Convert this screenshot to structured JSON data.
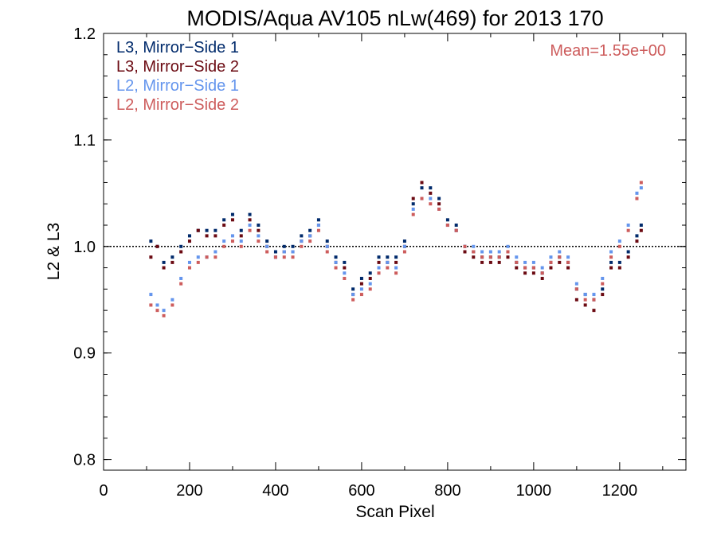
{
  "chart_data": {
    "type": "scatter",
    "title": "MODIS/Aqua AV105 nLw(469) for 2013 170",
    "xlabel": "Scan Pixel",
    "ylabel": "L2 & L3",
    "xlim": [
      0,
      1354
    ],
    "ylim": [
      0.79,
      1.2
    ],
    "xticks": [
      "0",
      "200",
      "400",
      "600",
      "800",
      "1000",
      "1200"
    ],
    "yticks": [
      "0.8",
      "0.9",
      "1.0",
      "1.1",
      "1.2"
    ],
    "reference_line": 1.0,
    "annotation": "Mean=1.55e+00",
    "annotation_color": "#cd5c5c",
    "legend_position": "top-left",
    "series": [
      {
        "name": "L3, Mirror−Side 1",
        "color": "#002a6b",
        "x": [
          110,
          125,
          140,
          160,
          180,
          200,
          220,
          240,
          260,
          280,
          300,
          320,
          340,
          360,
          380,
          400,
          420,
          440,
          460,
          480,
          500,
          520,
          540,
          560,
          580,
          600,
          620,
          640,
          660,
          680,
          700,
          720,
          740,
          760,
          780,
          800,
          820,
          840,
          860,
          880,
          900,
          920,
          940,
          960,
          980,
          1000,
          1020,
          1040,
          1060,
          1080,
          1100,
          1120,
          1140,
          1160,
          1180,
          1200,
          1220,
          1240,
          1250
        ],
        "y": [
          1.005,
          1.0,
          0.985,
          0.99,
          1.0,
          1.01,
          1.015,
          1.015,
          1.015,
          1.025,
          1.03,
          1.015,
          1.03,
          1.02,
          1.005,
          0.995,
          1.0,
          1.0,
          1.01,
          1.015,
          1.025,
          1.005,
          0.99,
          0.985,
          0.96,
          0.97,
          0.975,
          0.99,
          0.99,
          0.99,
          1.005,
          1.04,
          1.055,
          1.055,
          1.045,
          1.025,
          1.02,
          1.0,
          0.995,
          0.99,
          0.99,
          0.99,
          0.995,
          0.985,
          0.98,
          0.98,
          0.975,
          0.985,
          0.99,
          0.985,
          0.96,
          0.955,
          0.95,
          0.96,
          0.985,
          0.985,
          0.995,
          1.01,
          1.02
        ]
      },
      {
        "name": "L3, Mirror−Side 2",
        "color": "#6b0a12",
        "x": [
          110,
          125,
          140,
          160,
          180,
          200,
          220,
          240,
          260,
          280,
          300,
          320,
          340,
          360,
          380,
          400,
          420,
          440,
          460,
          480,
          500,
          520,
          540,
          560,
          580,
          600,
          620,
          640,
          660,
          680,
          700,
          720,
          740,
          760,
          780,
          800,
          820,
          840,
          860,
          880,
          900,
          920,
          940,
          960,
          980,
          1000,
          1020,
          1040,
          1060,
          1080,
          1100,
          1120,
          1140,
          1160,
          1180,
          1200,
          1220,
          1240,
          1250
        ],
        "y": [
          0.99,
          1.0,
          0.98,
          0.985,
          0.995,
          1.005,
          1.015,
          1.01,
          1.01,
          1.02,
          1.025,
          1.01,
          1.025,
          1.015,
          1.0,
          0.99,
          0.995,
          0.995,
          1.005,
          1.01,
          1.02,
          1.0,
          0.985,
          0.98,
          0.955,
          0.965,
          0.97,
          0.985,
          0.985,
          0.985,
          1.0,
          1.045,
          1.06,
          1.05,
          1.04,
          1.02,
          1.015,
          0.995,
          0.99,
          0.985,
          0.985,
          0.985,
          0.99,
          0.98,
          0.975,
          0.975,
          0.97,
          0.98,
          0.985,
          0.98,
          0.95,
          0.945,
          0.94,
          0.955,
          0.98,
          0.98,
          0.99,
          1.005,
          1.015
        ]
      },
      {
        "name": "L2, Mirror−Side 1",
        "color": "#6495ed",
        "x": [
          110,
          125,
          140,
          160,
          180,
          200,
          220,
          240,
          260,
          280,
          300,
          320,
          340,
          360,
          380,
          400,
          420,
          440,
          460,
          480,
          500,
          520,
          540,
          560,
          580,
          600,
          620,
          640,
          660,
          680,
          700,
          720,
          740,
          760,
          780,
          800,
          820,
          840,
          860,
          880,
          900,
          920,
          940,
          960,
          980,
          1000,
          1020,
          1040,
          1060,
          1080,
          1100,
          1120,
          1140,
          1160,
          1180,
          1200,
          1220,
          1240,
          1250
        ],
        "y": [
          0.955,
          0.945,
          0.94,
          0.95,
          0.97,
          0.985,
          0.99,
          0.99,
          0.995,
          1.005,
          1.01,
          1.005,
          1.02,
          1.01,
          1.0,
          0.99,
          0.995,
          0.995,
          1.005,
          1.01,
          1.02,
          1.0,
          0.985,
          0.975,
          0.955,
          0.96,
          0.965,
          0.98,
          0.985,
          0.98,
          1.0,
          1.035,
          1.045,
          1.045,
          1.035,
          1.02,
          1.015,
          1.0,
          1.0,
          0.995,
          0.995,
          0.995,
          1.0,
          0.99,
          0.985,
          0.985,
          0.98,
          0.99,
          0.995,
          0.99,
          0.965,
          0.955,
          0.955,
          0.97,
          0.995,
          1.005,
          1.02,
          1.05,
          1.055
        ]
      },
      {
        "name": "L2, Mirror−Side 2",
        "color": "#cd5c5c",
        "x": [
          110,
          125,
          140,
          160,
          180,
          200,
          220,
          240,
          260,
          280,
          300,
          320,
          340,
          360,
          380,
          400,
          420,
          440,
          460,
          480,
          500,
          520,
          540,
          560,
          580,
          600,
          620,
          640,
          660,
          680,
          700,
          720,
          740,
          760,
          780,
          800,
          820,
          840,
          860,
          880,
          900,
          920,
          940,
          960,
          980,
          1000,
          1020,
          1040,
          1060,
          1080,
          1100,
          1120,
          1140,
          1160,
          1180,
          1200,
          1220,
          1240,
          1250
        ],
        "y": [
          0.945,
          0.94,
          0.935,
          0.945,
          0.965,
          0.98,
          0.985,
          0.99,
          0.99,
          1.0,
          1.005,
          1.0,
          1.015,
          1.005,
          0.995,
          0.99,
          0.99,
          0.99,
          1.0,
          1.005,
          1.015,
          0.995,
          0.98,
          0.97,
          0.95,
          0.955,
          0.96,
          0.975,
          0.98,
          0.975,
          0.995,
          1.03,
          1.045,
          1.04,
          1.035,
          1.02,
          1.015,
          1.0,
          0.995,
          0.99,
          0.99,
          0.99,
          0.995,
          0.985,
          0.98,
          0.98,
          0.975,
          0.985,
          0.99,
          0.985,
          0.96,
          0.95,
          0.95,
          0.965,
          0.99,
          1.0,
          1.015,
          1.045,
          1.06
        ]
      }
    ]
  }
}
